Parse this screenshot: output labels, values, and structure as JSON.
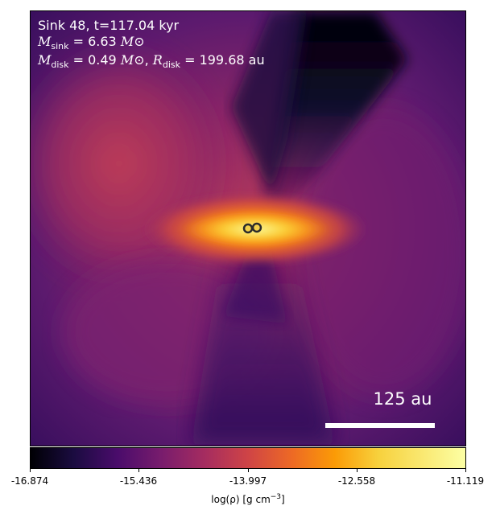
{
  "annotation": {
    "title_line": "Sink 48, t=117.04 kyr",
    "sink_mass_symbol": "M",
    "sink_mass_subscript": "sink",
    "sink_mass_value": " = 6.63",
    "disk_mass_symbol": "M",
    "disk_mass_subscript": "disk",
    "disk_mass_value": " = 0.49",
    "disk_radius_symbol": "R",
    "disk_radius_subscript": "disk",
    "disk_radius_value": " = 199.68 au",
    "solar_mass_unit": "M⊙"
  },
  "scale_bar": {
    "label": "125 au"
  },
  "colorbar": {
    "colormap": "inferno",
    "vmin": -16.874,
    "vmax": -11.119,
    "tick_labels": [
      "-16.874",
      "-15.436",
      "-13.997",
      "-12.558",
      "-11.119"
    ],
    "label_main": "log(ρ) [g cm",
    "label_exponent": "−3",
    "label_close": "]"
  },
  "sinks": [
    {
      "name": "sink-1",
      "color": "#2b2b2b"
    },
    {
      "name": "sink-2",
      "color": "#2b2b2b"
    }
  ]
}
